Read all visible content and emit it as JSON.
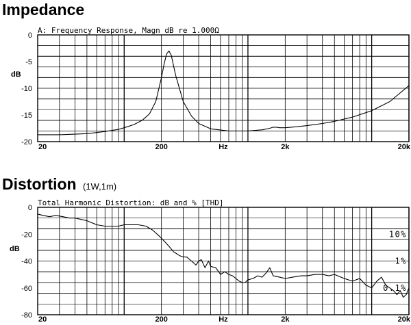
{
  "sections": [
    {
      "title": "Impedance",
      "subtitle": ""
    },
    {
      "title": "Distortion",
      "subtitle": "(1W,1m)"
    }
  ],
  "chart_data": [
    {
      "type": "line",
      "title": "A: Frequency Response, Magn dB re 1.000Ω",
      "xlabel": "Hz",
      "ylabel": "dB",
      "x_scale": "log",
      "xlim": [
        20,
        20000
      ],
      "ylim": [
        -20,
        0
      ],
      "x_ticks": [
        {
          "value": 20,
          "label": "20"
        },
        {
          "value": 200,
          "label": "200"
        },
        {
          "value": 2000,
          "label": "2k"
        },
        {
          "value": 20000,
          "label": "20k"
        }
      ],
      "y_ticks": [
        {
          "value": 0,
          "label": "0"
        },
        {
          "value": -5,
          "label": "-5"
        },
        {
          "value": -10,
          "label": "-10"
        },
        {
          "value": -15,
          "label": "-15"
        },
        {
          "value": -20,
          "label": "-20"
        }
      ],
      "grid": true,
      "series": [
        {
          "x": [
            20,
            25,
            30,
            40,
            50,
            60,
            70,
            80,
            90,
            100,
            120,
            140,
            160,
            180,
            200,
            210,
            220,
            230,
            240,
            260,
            300,
            350,
            400,
            500,
            700,
            1000,
            1300,
            1500,
            1600,
            1700,
            1800,
            2000,
            2500,
            3000,
            4000,
            5000,
            7000,
            10000,
            14000,
            20000
          ],
          "y": [
            -18.7,
            -18.7,
            -18.7,
            -18.6,
            -18.5,
            -18.3,
            -18.1,
            -17.9,
            -17.7,
            -17.4,
            -16.8,
            -16.0,
            -14.8,
            -12.5,
            -8.0,
            -5.5,
            -3.6,
            -3.0,
            -3.8,
            -7.5,
            -12.5,
            -15.2,
            -16.6,
            -17.6,
            -18.0,
            -18.0,
            -17.8,
            -17.5,
            -17.3,
            -17.3,
            -17.4,
            -17.4,
            -17.2,
            -17.0,
            -16.6,
            -16.2,
            -15.4,
            -14.2,
            -12.5,
            -9.5
          ]
        }
      ]
    },
    {
      "type": "line",
      "title": "Total Harmonic Distortion: dB and % [THD]",
      "xlabel": "Hz",
      "ylabel": "dB",
      "x_scale": "log",
      "xlim": [
        20,
        20000
      ],
      "ylim": [
        -80,
        0
      ],
      "x_ticks": [
        {
          "value": 20,
          "label": "20"
        },
        {
          "value": 200,
          "label": "200"
        },
        {
          "value": 2000,
          "label": "2k"
        },
        {
          "value": 20000,
          "label": "20k"
        }
      ],
      "y_ticks": [
        {
          "value": 0,
          "label": "0"
        },
        {
          "value": -20,
          "label": "-20"
        },
        {
          "value": -40,
          "label": "-40"
        },
        {
          "value": -60,
          "label": "-60"
        },
        {
          "value": -80,
          "label": "-80"
        }
      ],
      "percent_labels": [
        {
          "value": -20,
          "label": "10%"
        },
        {
          "value": -40,
          "label": "1%"
        },
        {
          "value": -60,
          "label": "0.1%"
        }
      ],
      "grid": true,
      "series": [
        {
          "x": [
            20,
            22,
            25,
            28,
            32,
            36,
            40,
            45,
            50,
            60,
            70,
            80,
            90,
            100,
            110,
            120,
            130,
            150,
            170,
            190,
            210,
            230,
            250,
            280,
            300,
            320,
            350,
            380,
            400,
            420,
            450,
            480,
            500,
            550,
            600,
            650,
            700,
            750,
            800,
            850,
            900,
            950,
            1000,
            1100,
            1200,
            1300,
            1400,
            1500,
            1600,
            1800,
            2000,
            2300,
            2700,
            3000,
            3500,
            4000,
            4500,
            5000,
            6000,
            7000,
            8000,
            9000,
            10000,
            11000,
            12000,
            13000,
            14000,
            15000,
            16000,
            17000,
            18000,
            19000,
            20000
          ],
          "y": [
            -5,
            -6,
            -7,
            -6,
            -7,
            -8,
            -8,
            -9,
            -10,
            -13,
            -14,
            -14,
            -14,
            -13,
            -13,
            -13,
            -13,
            -14,
            -17,
            -21,
            -25,
            -29,
            -33,
            -36,
            -37,
            -37,
            -40,
            -43,
            -40,
            -39,
            -45,
            -40,
            -44,
            -45,
            -50,
            -48,
            -50,
            -51,
            -53,
            -55,
            -56,
            -56,
            -54,
            -53,
            -51,
            -52,
            -49,
            -45,
            -51,
            -52,
            -53,
            -52,
            -51,
            -51,
            -50,
            -50,
            -51,
            -50,
            -53,
            -55,
            -53,
            -58,
            -60,
            -55,
            -52,
            -58,
            -60,
            -62,
            -65,
            -62,
            -67,
            -65,
            -60
          ]
        }
      ]
    }
  ]
}
